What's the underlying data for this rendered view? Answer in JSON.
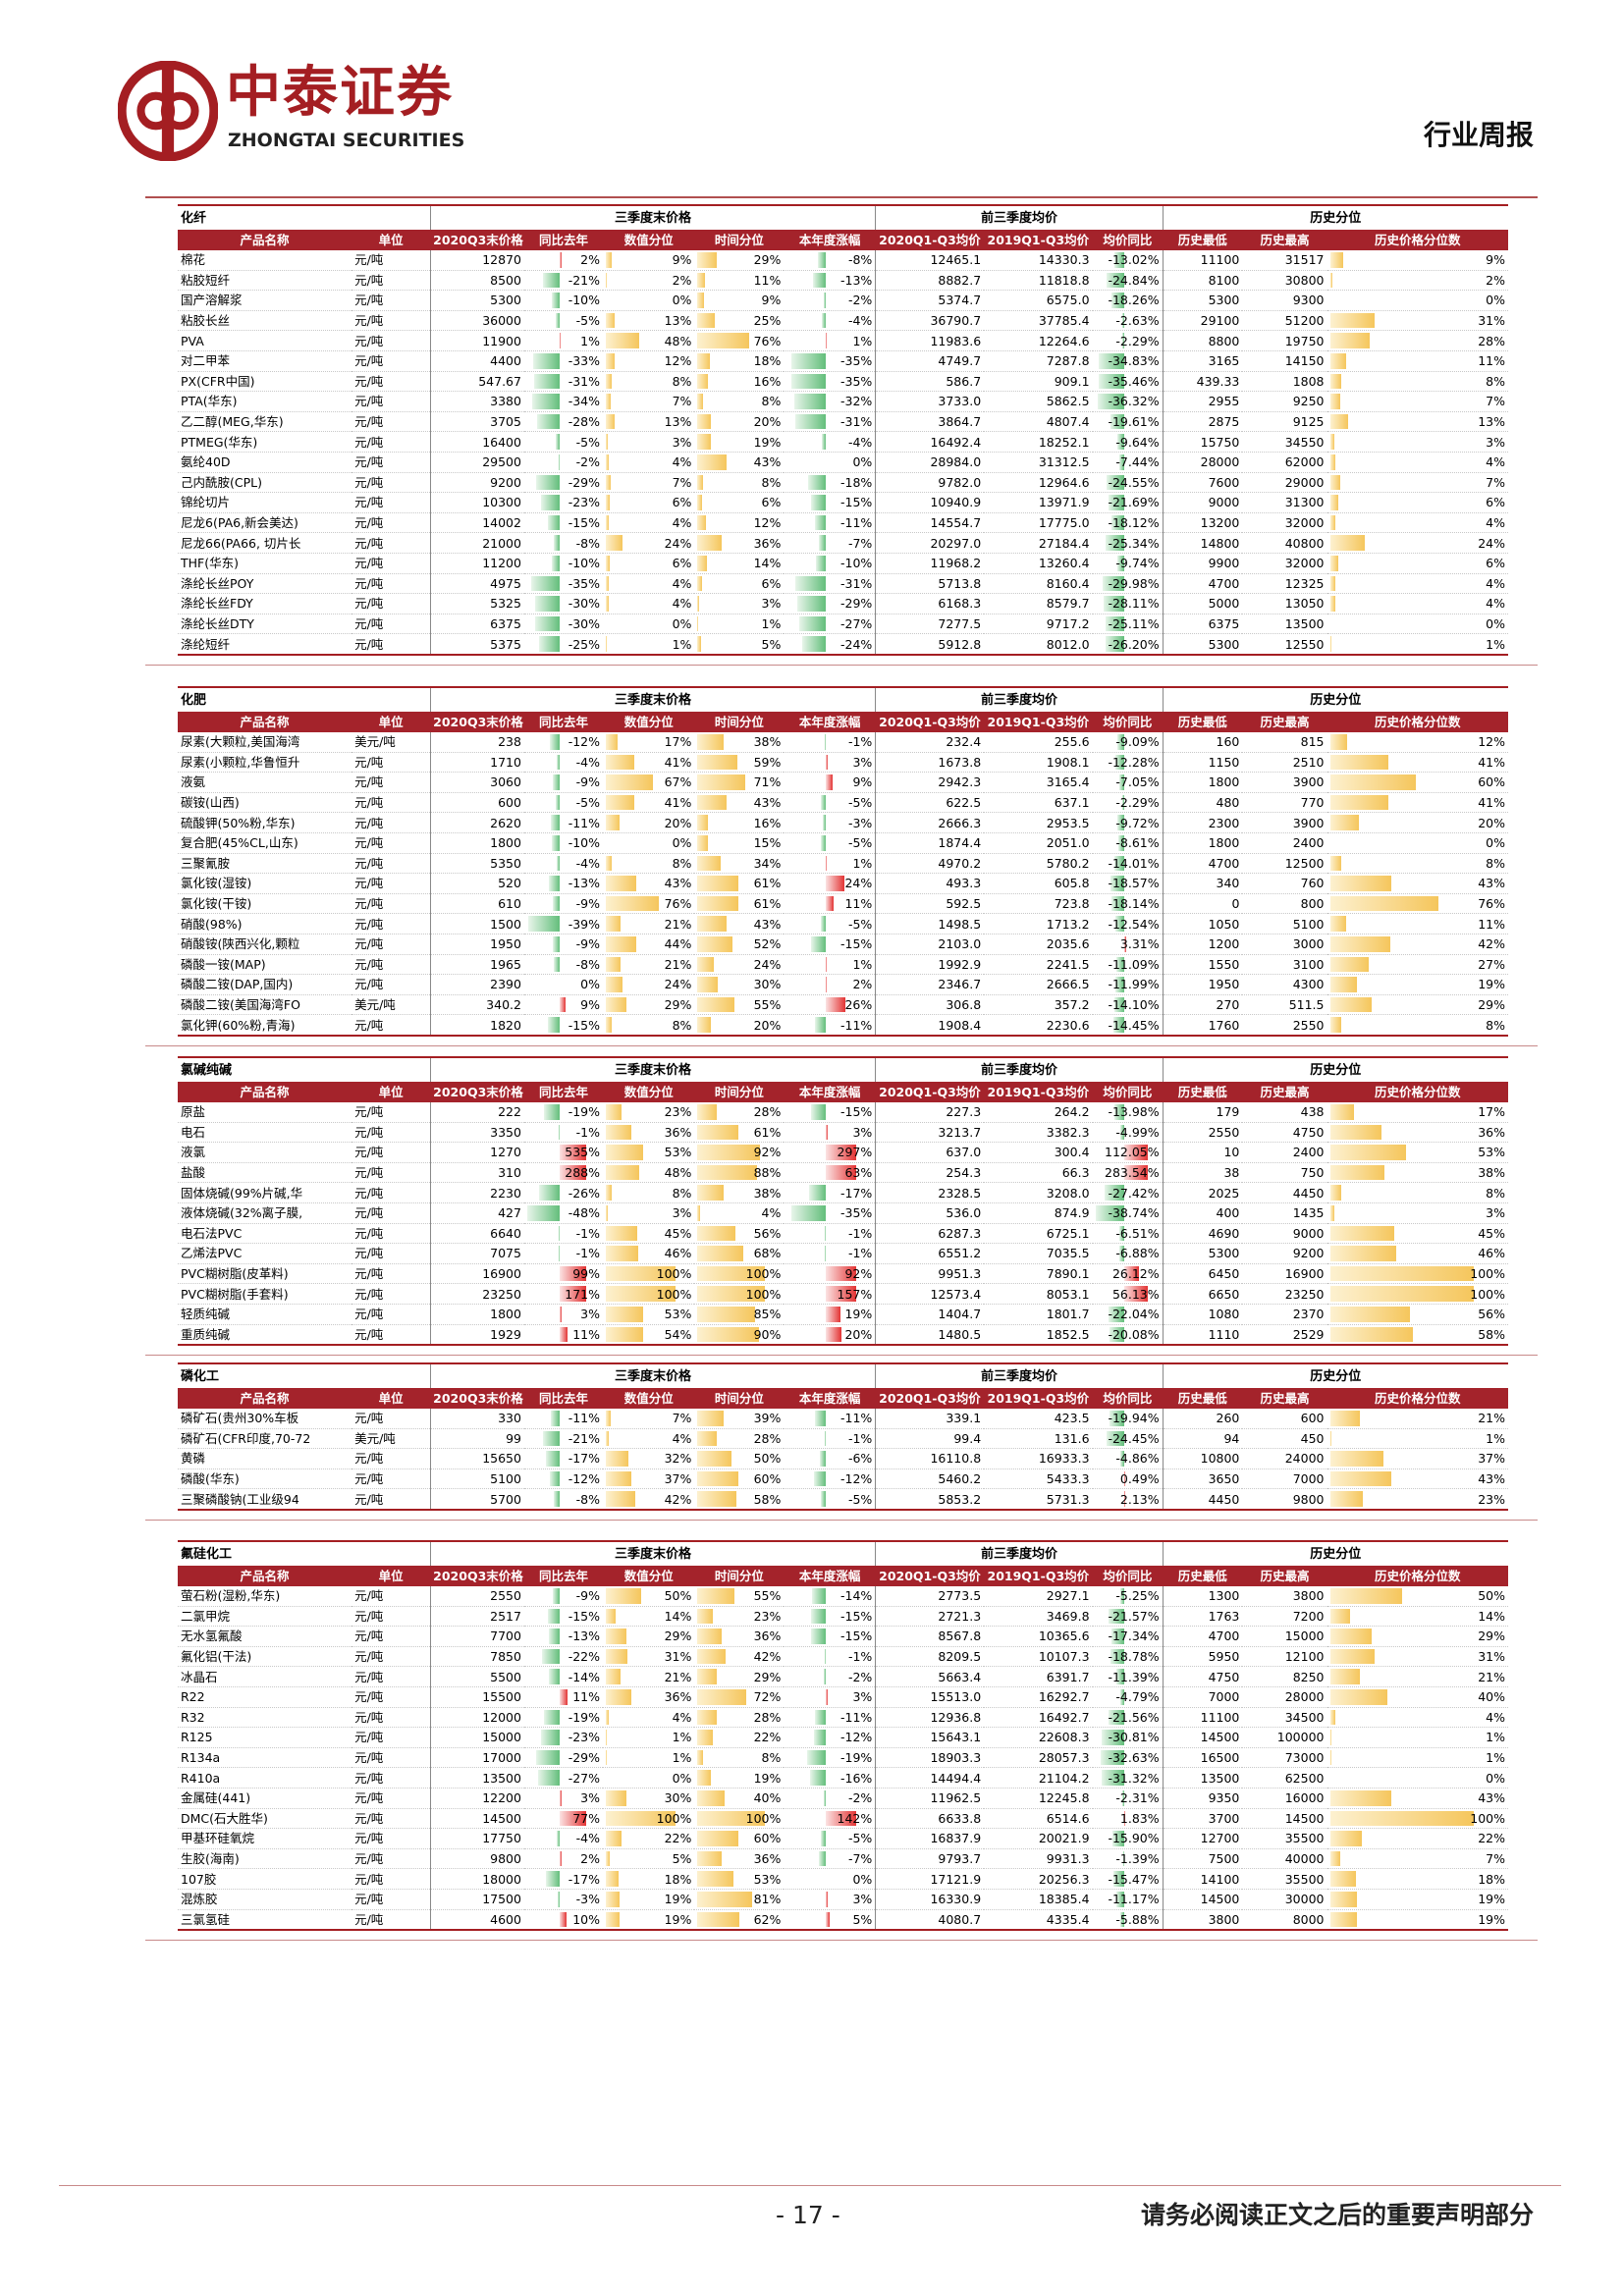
{
  "header": {
    "logo_cn": "中泰证券",
    "logo_en": "ZHONGTAI SECURITIES",
    "report_type": "行业周报",
    "brand_color": "#a41e22"
  },
  "column_groups": [
    "三季度末价格",
    "前三季度均价",
    "历史分位"
  ],
  "columns": [
    "产品名称",
    "单位",
    "2020Q3末价格",
    "同比去年",
    "数值分位",
    "时间分位",
    "本年度涨幅",
    "2020Q1-Q3均价",
    "2019Q1-Q3均价",
    "均价同比",
    "历史最低",
    "历史最高",
    "历史价格分位数"
  ],
  "sections": [
    {
      "title": "化纤",
      "rows": [
        [
          "棉花",
          "元/吨",
          "12870",
          "2%",
          "9%",
          "29%",
          "-8%",
          "12465.1",
          "14330.3",
          "-13.02%",
          "11100",
          "31517",
          "9%"
        ],
        [
          "粘胶短纤",
          "元/吨",
          "8500",
          "-21%",
          "2%",
          "11%",
          "-13%",
          "8882.7",
          "11818.8",
          "-24.84%",
          "8100",
          "30800",
          "2%"
        ],
        [
          "国产溶解浆",
          "元/吨",
          "5300",
          "-10%",
          "0%",
          "9%",
          "-2%",
          "5374.7",
          "6575.0",
          "-18.26%",
          "5300",
          "9300",
          "0%"
        ],
        [
          "粘胶长丝",
          "元/吨",
          "36000",
          "-5%",
          "13%",
          "25%",
          "-4%",
          "36790.7",
          "37785.4",
          "-2.63%",
          "29100",
          "51200",
          "31%"
        ],
        [
          "PVA",
          "元/吨",
          "11900",
          "1%",
          "48%",
          "76%",
          "1%",
          "11983.6",
          "12264.6",
          "-2.29%",
          "8800",
          "19750",
          "28%"
        ],
        [
          "对二甲苯",
          "元/吨",
          "4400",
          "-33%",
          "12%",
          "18%",
          "-35%",
          "4749.7",
          "7287.8",
          "-34.83%",
          "3165",
          "14150",
          "11%"
        ],
        [
          "PX(CFR中国)",
          "元/吨",
          "547.67",
          "-31%",
          "8%",
          "16%",
          "-35%",
          "586.7",
          "909.1",
          "-35.46%",
          "439.33",
          "1808",
          "8%"
        ],
        [
          "PTA(华东)",
          "元/吨",
          "3380",
          "-34%",
          "7%",
          "8%",
          "-32%",
          "3733.0",
          "5862.5",
          "-36.32%",
          "2955",
          "9250",
          "7%"
        ],
        [
          "乙二醇(MEG,华东)",
          "元/吨",
          "3705",
          "-28%",
          "13%",
          "20%",
          "-31%",
          "3864.7",
          "4807.4",
          "-19.61%",
          "2875",
          "9125",
          "13%"
        ],
        [
          "PTMEG(华东)",
          "元/吨",
          "16400",
          "-5%",
          "3%",
          "19%",
          "-4%",
          "16492.4",
          "18252.1",
          "-9.64%",
          "15750",
          "34550",
          "3%"
        ],
        [
          "氨纶40D",
          "元/吨",
          "29500",
          "-2%",
          "4%",
          "43%",
          "0%",
          "28984.0",
          "31312.5",
          "-7.44%",
          "28000",
          "62000",
          "4%"
        ],
        [
          "己内酰胺(CPL)",
          "元/吨",
          "9200",
          "-29%",
          "7%",
          "8%",
          "-18%",
          "9782.0",
          "12964.6",
          "-24.55%",
          "7600",
          "29000",
          "7%"
        ],
        [
          "锦纶切片",
          "元/吨",
          "10300",
          "-23%",
          "6%",
          "6%",
          "-15%",
          "10940.9",
          "13971.9",
          "-21.69%",
          "9000",
          "31300",
          "6%"
        ],
        [
          "尼龙6(PA6,新会美达)",
          "元/吨",
          "14002",
          "-15%",
          "4%",
          "12%",
          "-11%",
          "14554.7",
          "17775.0",
          "-18.12%",
          "13200",
          "32000",
          "4%"
        ],
        [
          "尼龙66(PA66, 切片长",
          "元/吨",
          "21000",
          "-8%",
          "24%",
          "36%",
          "-7%",
          "20297.0",
          "27184.4",
          "-25.34%",
          "14800",
          "40800",
          "24%"
        ],
        [
          "THF(华东)",
          "元/吨",
          "11200",
          "-10%",
          "6%",
          "14%",
          "-10%",
          "11968.2",
          "13260.4",
          "-9.74%",
          "9900",
          "32000",
          "6%"
        ],
        [
          "涤纶长丝POY",
          "元/吨",
          "4975",
          "-35%",
          "4%",
          "6%",
          "-31%",
          "5713.8",
          "8160.4",
          "-29.98%",
          "4700",
          "12325",
          "4%"
        ],
        [
          "涤纶长丝FDY",
          "元/吨",
          "5325",
          "-30%",
          "4%",
          "3%",
          "-29%",
          "6168.3",
          "8579.7",
          "-28.11%",
          "5000",
          "13050",
          "4%"
        ],
        [
          "涤纶长丝DTY",
          "元/吨",
          "6375",
          "-30%",
          "0%",
          "1%",
          "-27%",
          "7277.5",
          "9717.2",
          "-25.11%",
          "6375",
          "13500",
          "0%"
        ],
        [
          "涤纶短纤",
          "元/吨",
          "5375",
          "-25%",
          "1%",
          "5%",
          "-24%",
          "5912.8",
          "8012.0",
          "-26.20%",
          "5300",
          "12550",
          "1%"
        ]
      ]
    },
    {
      "title": "化肥",
      "rows": [
        [
          "尿素(大颗粒,美国海湾",
          "美元/吨",
          "238",
          "-12%",
          "17%",
          "38%",
          "-1%",
          "232.4",
          "255.6",
          "-9.09%",
          "160",
          "815",
          "12%"
        ],
        [
          "尿素(小颗粒,华鲁恒升",
          "元/吨",
          "1710",
          "-4%",
          "41%",
          "59%",
          "3%",
          "1673.8",
          "1908.1",
          "-12.28%",
          "1150",
          "2510",
          "41%"
        ],
        [
          "液氨",
          "元/吨",
          "3060",
          "-9%",
          "67%",
          "71%",
          "9%",
          "2942.3",
          "3165.4",
          "-7.05%",
          "1800",
          "3900",
          "60%"
        ],
        [
          "碳铵(山西)",
          "元/吨",
          "600",
          "-5%",
          "41%",
          "43%",
          "-5%",
          "622.5",
          "637.1",
          "-2.29%",
          "480",
          "770",
          "41%"
        ],
        [
          "硫酸钾(50%粉,华东)",
          "元/吨",
          "2620",
          "-11%",
          "20%",
          "16%",
          "-3%",
          "2666.3",
          "2953.5",
          "-9.72%",
          "2300",
          "3900",
          "20%"
        ],
        [
          "复合肥(45%CL,山东)",
          "元/吨",
          "1800",
          "-10%",
          "0%",
          "15%",
          "-5%",
          "1874.4",
          "2051.0",
          "-8.61%",
          "1800",
          "2400",
          "0%"
        ],
        [
          "三聚氰胺",
          "元/吨",
          "5350",
          "-4%",
          "8%",
          "34%",
          "1%",
          "4970.2",
          "5780.2",
          "-14.01%",
          "4700",
          "12500",
          "8%"
        ],
        [
          "氯化铵(湿铵)",
          "元/吨",
          "520",
          "-13%",
          "43%",
          "61%",
          "24%",
          "493.3",
          "605.8",
          "-18.57%",
          "340",
          "760",
          "43%"
        ],
        [
          "氯化铵(干铵)",
          "元/吨",
          "610",
          "-9%",
          "76%",
          "61%",
          "11%",
          "592.5",
          "723.8",
          "-18.14%",
          "0",
          "800",
          "76%"
        ],
        [
          "硝酸(98%)",
          "元/吨",
          "1500",
          "-39%",
          "21%",
          "43%",
          "-5%",
          "1498.5",
          "1713.2",
          "-12.54%",
          "1050",
          "5100",
          "11%"
        ],
        [
          "硝酸铵(陕西兴化,颗粒",
          "元/吨",
          "1950",
          "-9%",
          "44%",
          "52%",
          "-15%",
          "2103.0",
          "2035.6",
          "3.31%",
          "1200",
          "3000",
          "42%"
        ],
        [
          "磷酸一铵(MAP)",
          "元/吨",
          "1965",
          "-8%",
          "21%",
          "24%",
          "1%",
          "1992.9",
          "2241.5",
          "-11.09%",
          "1550",
          "3100",
          "27%"
        ],
        [
          "磷酸二铵(DAP,国内)",
          "元/吨",
          "2390",
          "0%",
          "24%",
          "30%",
          "2%",
          "2346.7",
          "2666.5",
          "-11.99%",
          "1950",
          "4300",
          "19%"
        ],
        [
          "磷酸二铵(美国海湾FO",
          "美元/吨",
          "340.2",
          "9%",
          "29%",
          "55%",
          "26%",
          "306.8",
          "357.2",
          "-14.10%",
          "270",
          "511.5",
          "29%"
        ],
        [
          "氯化钾(60%粉,青海)",
          "元/吨",
          "1820",
          "-15%",
          "8%",
          "20%",
          "-11%",
          "1908.4",
          "2230.6",
          "-14.45%",
          "1760",
          "2550",
          "8%"
        ]
      ]
    },
    {
      "title": "氯碱纯碱",
      "rows": [
        [
          "原盐",
          "元/吨",
          "222",
          "-19%",
          "23%",
          "28%",
          "-15%",
          "227.3",
          "264.2",
          "-13.98%",
          "179",
          "438",
          "17%"
        ],
        [
          "电石",
          "元/吨",
          "3350",
          "-1%",
          "36%",
          "61%",
          "3%",
          "3213.7",
          "3382.3",
          "-4.99%",
          "2550",
          "4750",
          "36%"
        ],
        [
          "液氯",
          "元/吨",
          "1270",
          "535%",
          "53%",
          "92%",
          "297%",
          "637.0",
          "300.4",
          "112.05%",
          "10",
          "2400",
          "53%"
        ],
        [
          "盐酸",
          "元/吨",
          "310",
          "288%",
          "48%",
          "88%",
          "63%",
          "254.3",
          "66.3",
          "283.54%",
          "38",
          "750",
          "38%"
        ],
        [
          "固体烧碱(99%片碱,华",
          "元/吨",
          "2230",
          "-26%",
          "8%",
          "38%",
          "-17%",
          "2328.5",
          "3208.0",
          "-27.42%",
          "2025",
          "4450",
          "8%"
        ],
        [
          "液体烧碱(32%离子膜,",
          "元/吨",
          "427",
          "-48%",
          "3%",
          "4%",
          "-35%",
          "536.0",
          "874.9",
          "-38.74%",
          "400",
          "1435",
          "3%"
        ],
        [
          "电石法PVC",
          "元/吨",
          "6640",
          "-1%",
          "45%",
          "56%",
          "-1%",
          "6287.3",
          "6725.1",
          "-6.51%",
          "4690",
          "9000",
          "45%"
        ],
        [
          "乙烯法PVC",
          "元/吨",
          "7075",
          "-1%",
          "46%",
          "68%",
          "-1%",
          "6551.2",
          "7035.5",
          "-6.88%",
          "5300",
          "9200",
          "46%"
        ],
        [
          "PVC糊树脂(皮革料)",
          "元/吨",
          "16900",
          "99%",
          "100%",
          "100%",
          "92%",
          "9951.3",
          "7890.1",
          "26.12%",
          "6450",
          "16900",
          "100%"
        ],
        [
          "PVC糊树脂(手套料)",
          "元/吨",
          "23250",
          "171%",
          "100%",
          "100%",
          "157%",
          "12573.4",
          "8053.1",
          "56.13%",
          "6650",
          "23250",
          "100%"
        ],
        [
          "轻质纯碱",
          "元/吨",
          "1800",
          "3%",
          "53%",
          "85%",
          "19%",
          "1404.7",
          "1801.7",
          "-22.04%",
          "1080",
          "2370",
          "56%"
        ],
        [
          "重质纯碱",
          "元/吨",
          "1929",
          "11%",
          "54%",
          "90%",
          "20%",
          "1480.5",
          "1852.5",
          "-20.08%",
          "1110",
          "2529",
          "58%"
        ]
      ]
    },
    {
      "title": "磷化工",
      "rows": [
        [
          "磷矿石(贵州30%车板",
          "元/吨",
          "330",
          "-11%",
          "7%",
          "39%",
          "-11%",
          "339.1",
          "423.5",
          "-19.94%",
          "260",
          "600",
          "21%"
        ],
        [
          "磷矿石(CFR印度,70-72",
          "美元/吨",
          "99",
          "-21%",
          "4%",
          "28%",
          "-1%",
          "99.4",
          "131.6",
          "-24.45%",
          "94",
          "450",
          "1%"
        ],
        [
          "黄磷",
          "元/吨",
          "15650",
          "-17%",
          "32%",
          "50%",
          "-6%",
          "16110.8",
          "16933.3",
          "-4.86%",
          "10800",
          "24000",
          "37%"
        ],
        [
          "磷酸(华东)",
          "元/吨",
          "5100",
          "-12%",
          "37%",
          "60%",
          "-12%",
          "5460.2",
          "5433.3",
          "0.49%",
          "3650",
          "7000",
          "43%"
        ],
        [
          "三聚磷酸钠(工业级94",
          "元/吨",
          "5700",
          "-8%",
          "42%",
          "58%",
          "-5%",
          "5853.2",
          "5731.3",
          "2.13%",
          "4450",
          "9800",
          "23%"
        ]
      ]
    },
    {
      "title": "氟硅化工",
      "rows": [
        [
          "萤石粉(湿粉,华东)",
          "元/吨",
          "2550",
          "-9%",
          "50%",
          "55%",
          "-14%",
          "2773.5",
          "2927.1",
          "-5.25%",
          "1300",
          "3800",
          "50%"
        ],
        [
          "二氯甲烷",
          "元/吨",
          "2517",
          "-15%",
          "14%",
          "23%",
          "-15%",
          "2721.3",
          "3469.8",
          "-21.57%",
          "1763",
          "7200",
          "14%"
        ],
        [
          "无水氢氟酸",
          "元/吨",
          "7700",
          "-13%",
          "29%",
          "36%",
          "-15%",
          "8567.8",
          "10365.6",
          "-17.34%",
          "4700",
          "15000",
          "29%"
        ],
        [
          "氟化铝(干法)",
          "元/吨",
          "7850",
          "-22%",
          "31%",
          "42%",
          "-1%",
          "8209.5",
          "10107.3",
          "-18.78%",
          "5950",
          "12100",
          "31%"
        ],
        [
          "冰晶石",
          "元/吨",
          "5500",
          "-14%",
          "21%",
          "29%",
          "-2%",
          "5663.4",
          "6391.7",
          "-11.39%",
          "4750",
          "8250",
          "21%"
        ],
        [
          "R22",
          "元/吨",
          "15500",
          "11%",
          "36%",
          "72%",
          "3%",
          "15513.0",
          "16292.7",
          "-4.79%",
          "7000",
          "28000",
          "40%"
        ],
        [
          "R32",
          "元/吨",
          "12000",
          "-19%",
          "4%",
          "28%",
          "-11%",
          "12936.8",
          "16492.7",
          "-21.56%",
          "11100",
          "34500",
          "4%"
        ],
        [
          "R125",
          "元/吨",
          "15000",
          "-23%",
          "1%",
          "22%",
          "-12%",
          "15643.1",
          "22608.3",
          "-30.81%",
          "14500",
          "100000",
          "1%"
        ],
        [
          "R134a",
          "元/吨",
          "17000",
          "-29%",
          "1%",
          "8%",
          "-19%",
          "18903.3",
          "28057.3",
          "-32.63%",
          "16500",
          "73000",
          "1%"
        ],
        [
          "R410a",
          "元/吨",
          "13500",
          "-27%",
          "0%",
          "19%",
          "-16%",
          "14494.4",
          "21104.2",
          "-31.32%",
          "13500",
          "62500",
          "0%"
        ],
        [
          "金属硅(441)",
          "元/吨",
          "12200",
          "3%",
          "30%",
          "40%",
          "-2%",
          "11962.5",
          "12245.8",
          "-2.31%",
          "9350",
          "16000",
          "43%"
        ],
        [
          "DMC(石大胜华)",
          "元/吨",
          "14500",
          "77%",
          "100%",
          "100%",
          "142%",
          "6633.8",
          "6514.6",
          "1.83%",
          "3700",
          "14500",
          "100%"
        ],
        [
          "甲基环硅氧烷",
          "元/吨",
          "17750",
          "-4%",
          "22%",
          "60%",
          "-5%",
          "16837.9",
          "20021.9",
          "-15.90%",
          "12700",
          "35500",
          "22%"
        ],
        [
          "生胶(海南)",
          "元/吨",
          "9800",
          "2%",
          "5%",
          "36%",
          "-7%",
          "9793.7",
          "9931.3",
          "-1.39%",
          "7500",
          "40000",
          "7%"
        ],
        [
          "107胶",
          "元/吨",
          "18000",
          "-17%",
          "18%",
          "53%",
          "0%",
          "17121.9",
          "20256.3",
          "-15.47%",
          "14100",
          "35500",
          "18%"
        ],
        [
          "混炼胶",
          "元/吨",
          "17500",
          "-3%",
          "19%",
          "81%",
          "3%",
          "16330.9",
          "18385.4",
          "-11.17%",
          "14500",
          "30000",
          "19%"
        ],
        [
          "三氯氢硅",
          "元/吨",
          "4600",
          "10%",
          "19%",
          "62%",
          "5%",
          "4080.7",
          "4335.4",
          "-5.88%",
          "3800",
          "8000",
          "19%"
        ]
      ]
    }
  ],
  "footer": {
    "page_number": "- 17 -",
    "disclaimer": "请务必阅读正文之后的重要声明部分"
  }
}
